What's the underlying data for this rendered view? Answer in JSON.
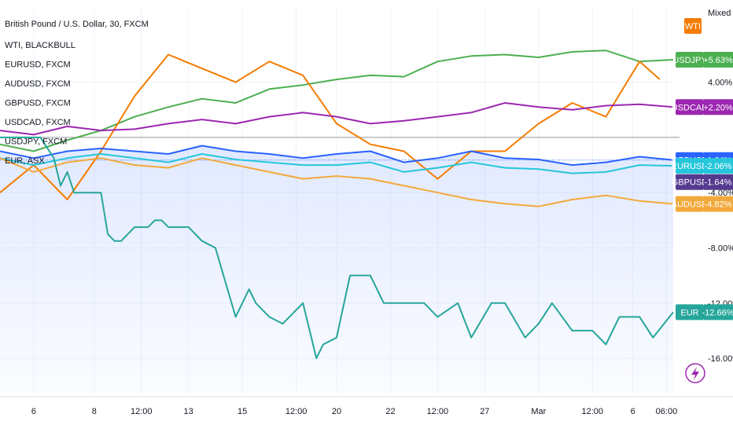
{
  "chart_data": {
    "type": "line",
    "title": "British Pound / U.S. Dollar, 30, FXCM",
    "scale_mode": "Mixed",
    "legend_entries": [
      "WTI, BLACKBULL",
      "EURUSD, FXCM",
      "AUDUSD, FXCM",
      "GBPUSD, FXCM",
      "USDCAD, FXCM",
      "USDJPY, FXCM",
      "EUR, ASX"
    ],
    "legend_placement": "top-left",
    "x_ticks": [
      "6",
      "8",
      "12:00",
      "13",
      "15",
      "12:00",
      "20",
      "22",
      "12:00",
      "27",
      "Mar",
      "12:00",
      "6",
      "06:00"
    ],
    "y_ticks": [
      "4.00%",
      "-4.00%",
      "-8.00%",
      "-12.00%",
      "-16.00%"
    ],
    "ylim": [
      -18.5,
      9.5
    ],
    "x_range": [
      0,
      100
    ],
    "series": [
      {
        "name": "USDJPY",
        "color": "#4caf50",
        "tag": "+5.63%",
        "x": [
          0,
          5,
          10,
          15,
          20,
          25,
          30,
          35,
          40,
          45,
          50,
          55,
          60,
          65,
          70,
          75,
          80,
          85,
          90,
          95,
          100
        ],
        "values": [
          -0.5,
          -1.0,
          -0.2,
          0.5,
          1.5,
          2.2,
          2.8,
          2.5,
          3.5,
          3.8,
          4.2,
          4.5,
          4.4,
          5.5,
          5.9,
          6.0,
          5.8,
          6.2,
          6.3,
          5.5,
          5.63
        ]
      },
      {
        "name": "WTI",
        "color": "#f57c00",
        "tag": "WTI",
        "x": [
          0,
          5,
          10,
          15,
          20,
          25,
          30,
          35,
          40,
          45,
          50,
          55,
          60,
          65,
          70,
          75,
          80,
          85,
          90,
          95,
          98
        ],
        "values": [
          -4.0,
          -2.0,
          -4.5,
          -1.0,
          3.0,
          6.0,
          5.0,
          4.0,
          5.5,
          4.5,
          1.0,
          -0.5,
          -1.0,
          -3.0,
          -1.0,
          -1.0,
          1.0,
          2.5,
          1.5,
          5.5,
          4.2
        ]
      },
      {
        "name": "USDCAD",
        "color": "#9c27b0",
        "tag": "+2.20%",
        "x": [
          0,
          5,
          10,
          15,
          20,
          25,
          30,
          35,
          40,
          45,
          50,
          55,
          60,
          65,
          70,
          75,
          80,
          85,
          90,
          95,
          100
        ],
        "values": [
          0.5,
          0.2,
          0.8,
          0.5,
          0.6,
          1.0,
          1.3,
          1.0,
          1.5,
          1.8,
          1.5,
          1.0,
          1.2,
          1.5,
          1.8,
          2.5,
          2.2,
          2.0,
          2.3,
          2.4,
          2.2
        ]
      },
      {
        "name": "GBPUSD",
        "color": "#2962ff",
        "tag": "-1.64%",
        "x": [
          0,
          5,
          10,
          15,
          20,
          25,
          30,
          35,
          40,
          45,
          50,
          55,
          60,
          65,
          70,
          75,
          80,
          85,
          90,
          95,
          100
        ],
        "values": [
          -1.0,
          -1.5,
          -1.0,
          -0.8,
          -1.0,
          -1.2,
          -0.6,
          -1.0,
          -1.2,
          -1.5,
          -1.2,
          -1.0,
          -1.8,
          -1.5,
          -1.0,
          -1.5,
          -1.6,
          -2.0,
          -1.8,
          -1.4,
          -1.64
        ]
      },
      {
        "name": "EURUSD",
        "color": "#26c6da",
        "tag": "-2.06%",
        "x": [
          0,
          5,
          10,
          15,
          20,
          25,
          30,
          35,
          40,
          45,
          50,
          55,
          60,
          65,
          70,
          75,
          80,
          85,
          90,
          95,
          100
        ],
        "values": [
          -1.5,
          -2.0,
          -1.5,
          -1.2,
          -1.5,
          -1.8,
          -1.2,
          -1.6,
          -1.8,
          -2.0,
          -2.0,
          -1.8,
          -2.5,
          -2.2,
          -1.8,
          -2.2,
          -2.3,
          -2.6,
          -2.5,
          -2.0,
          -2.06
        ]
      },
      {
        "name": "AUDUSD",
        "color": "#f2a93b",
        "tag": "-4.82%",
        "x": [
          0,
          5,
          10,
          15,
          20,
          25,
          30,
          35,
          40,
          45,
          50,
          55,
          60,
          65,
          70,
          75,
          80,
          85,
          90,
          95,
          100
        ],
        "values": [
          -1.5,
          -2.5,
          -1.8,
          -1.5,
          -2.0,
          -2.2,
          -1.5,
          -2.0,
          -2.5,
          -3.0,
          -2.8,
          -3.0,
          -3.5,
          -4.0,
          -4.5,
          -4.8,
          -5.0,
          -4.5,
          -4.2,
          -4.6,
          -4.82
        ]
      },
      {
        "name": "EUR",
        "color": "#26a69a",
        "tag": "-12.66%",
        "x": [
          0,
          3,
          6,
          8,
          9,
          10,
          11,
          12,
          15,
          16,
          17,
          18,
          20,
          22,
          23,
          24,
          25,
          28,
          30,
          32,
          35,
          37,
          38,
          40,
          42,
          45,
          47,
          48,
          50,
          52,
          55,
          57,
          58,
          60,
          63,
          65,
          68,
          70,
          73,
          75,
          78,
          80,
          82,
          85,
          88,
          90,
          92,
          95,
          97,
          100
        ],
        "values": [
          0.0,
          0.0,
          0.0,
          -1.5,
          -3.5,
          -2.5,
          -4.0,
          -4.0,
          -4.0,
          -7.0,
          -7.5,
          -7.5,
          -6.5,
          -6.5,
          -6.0,
          -6.0,
          -6.5,
          -6.5,
          -7.5,
          -8.0,
          -13.0,
          -11.0,
          -12.0,
          -13.0,
          -13.5,
          -12.0,
          -16.0,
          -15.0,
          -14.5,
          -10.0,
          -10.0,
          -12.0,
          -12.0,
          -12.0,
          -12.0,
          -13.0,
          -12.0,
          -14.5,
          -12.0,
          -12.0,
          -14.5,
          -13.5,
          -12.0,
          -14.0,
          -14.0,
          -15.0,
          -13.0,
          -13.0,
          -14.5,
          -12.66
        ]
      }
    ],
    "extra_tags": [
      {
        "name": "GBPUSD",
        "color": "#2962ff",
        "value": -1.64
      },
      {
        "name": "GBPUSD",
        "color": "#553a8f",
        "value": -1.64
      }
    ]
  }
}
